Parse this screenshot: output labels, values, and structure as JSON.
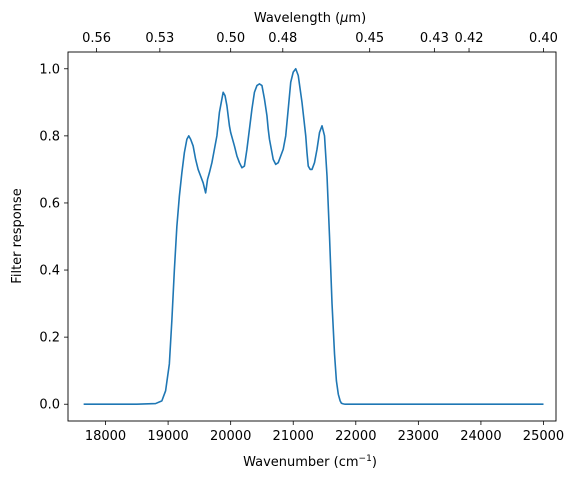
{
  "chart_data": {
    "type": "line",
    "xlabel_main": "Wavenumber (cm",
    "xlabel_sup": "−1",
    "xlabel_end": ")",
    "x2label_main": "Wavelength (",
    "x2label_mu": "μ",
    "x2label_end": "m)",
    "ylabel": "Filter response",
    "xlim": [
      17400,
      25200
    ],
    "ylim": [
      -0.05,
      1.05
    ],
    "grid": false,
    "xticks": [
      18000,
      19000,
      20000,
      21000,
      22000,
      23000,
      24000,
      25000
    ],
    "xtick_labels": [
      "18000",
      "19000",
      "20000",
      "21000",
      "22000",
      "23000",
      "24000",
      "25000"
    ],
    "yticks": [
      0.0,
      0.2,
      0.4,
      0.6,
      0.8,
      1.0
    ],
    "ytick_labels": [
      "0.0",
      "0.2",
      "0.4",
      "0.6",
      "0.8",
      "1.0"
    ],
    "x2ticks": [
      {
        "value": 17857,
        "label": "0.56"
      },
      {
        "value": 18868,
        "label": "0.53"
      },
      {
        "value": 20000,
        "label": "0.50"
      },
      {
        "value": 20833,
        "label": "0.48"
      },
      {
        "value": 22222,
        "label": "0.45"
      },
      {
        "value": 23256,
        "label": "0.43"
      },
      {
        "value": 23810,
        "label": "0.42"
      },
      {
        "value": 25000,
        "label": "0.40"
      }
    ],
    "series": [
      {
        "color": "#1f77b4",
        "x": [
          17650,
          18500,
          18800,
          18900,
          18960,
          19020,
          19060,
          19100,
          19140,
          19180,
          19220,
          19260,
          19300,
          19330,
          19360,
          19400,
          19440,
          19480,
          19520,
          19560,
          19600,
          19630,
          19660,
          19700,
          19740,
          19780,
          19820,
          19850,
          19880,
          19910,
          19940,
          19960,
          19980,
          20000,
          20030,
          20060,
          20100,
          20140,
          20180,
          20220,
          20260,
          20300,
          20340,
          20380,
          20420,
          20460,
          20500,
          20540,
          20580,
          20600,
          20620,
          20650,
          20680,
          20720,
          20760,
          20800,
          20840,
          20880,
          20920,
          20960,
          21000,
          21040,
          21080,
          21110,
          21140,
          21170,
          21200,
          21220,
          21240,
          21270,
          21300,
          21340,
          21380,
          21420,
          21460,
          21500,
          21540,
          21580,
          21620,
          21660,
          21690,
          21720,
          21750,
          21770,
          21800,
          21830,
          21860,
          21890,
          21920,
          21950,
          21980,
          22020,
          22100,
          22300,
          23000,
          25000
        ],
        "y": [
          0.0,
          0.0,
          0.002,
          0.01,
          0.04,
          0.12,
          0.25,
          0.4,
          0.53,
          0.62,
          0.69,
          0.75,
          0.79,
          0.8,
          0.79,
          0.77,
          0.73,
          0.7,
          0.68,
          0.66,
          0.63,
          0.67,
          0.69,
          0.72,
          0.76,
          0.8,
          0.87,
          0.9,
          0.93,
          0.92,
          0.89,
          0.86,
          0.83,
          0.81,
          0.79,
          0.77,
          0.74,
          0.72,
          0.705,
          0.71,
          0.76,
          0.82,
          0.88,
          0.93,
          0.95,
          0.955,
          0.95,
          0.91,
          0.86,
          0.82,
          0.79,
          0.76,
          0.73,
          0.715,
          0.72,
          0.74,
          0.76,
          0.8,
          0.88,
          0.96,
          0.99,
          1.0,
          0.98,
          0.94,
          0.9,
          0.85,
          0.8,
          0.75,
          0.71,
          0.7,
          0.7,
          0.72,
          0.76,
          0.81,
          0.83,
          0.8,
          0.68,
          0.5,
          0.3,
          0.15,
          0.07,
          0.03,
          0.01,
          0.003,
          0.001,
          0.0,
          0.0,
          0.0,
          0.0,
          0.0,
          0.0,
          0.0,
          0.0,
          0.0,
          0.0,
          0.0
        ]
      }
    ]
  }
}
